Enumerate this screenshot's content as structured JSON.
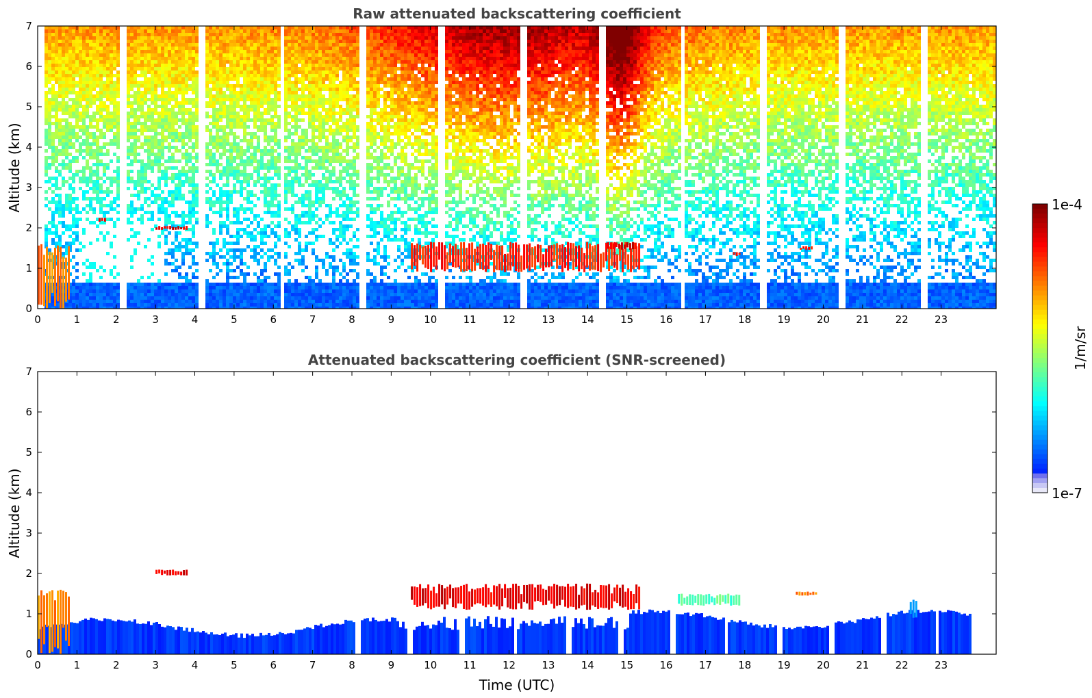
{
  "chart_data": [
    {
      "type": "heatmap",
      "title": "Raw attenuated backscattering coefficient",
      "xlabel": "",
      "ylabel": "Altitude (km)",
      "xlim": [
        0,
        24
      ],
      "ylim": [
        0,
        7
      ],
      "x_ticks": [
        "0",
        "1",
        "2",
        "3",
        "4",
        "5",
        "6",
        "7",
        "8",
        "9",
        "10",
        "11",
        "12",
        "13",
        "14",
        "15",
        "16",
        "17",
        "18",
        "19",
        "20",
        "21",
        "22",
        "23"
      ],
      "y_ticks": [
        "0",
        "1",
        "2",
        "3",
        "4",
        "5",
        "6",
        "7"
      ],
      "features": [
        {
          "x": [
            0.0,
            0.8
          ],
          "y": [
            0.0,
            1.6
          ],
          "level": 0.8
        },
        {
          "x": [
            3.0,
            3.8
          ],
          "y": [
            1.95,
            2.05
          ],
          "level": 0.95
        },
        {
          "x": [
            1.55,
            1.7
          ],
          "y": [
            2.15,
            2.25
          ],
          "level": 0.9
        },
        {
          "x": [
            9.5,
            15.3
          ],
          "y": [
            0.9,
            1.65
          ],
          "level": 0.9
        },
        {
          "x": [
            14.5,
            15.2
          ],
          "y": [
            1.45,
            1.65
          ],
          "level": 0.95
        },
        {
          "x": [
            17.7,
            17.9
          ],
          "y": [
            1.3,
            1.4
          ],
          "level": 0.9
        },
        {
          "x": [
            19.4,
            19.7
          ],
          "y": [
            1.45,
            1.55
          ],
          "level": 0.9
        }
      ]
    },
    {
      "type": "heatmap",
      "title": "Attenuated backscattering coefficient (SNR-screened)",
      "xlabel": "Time (UTC)",
      "ylabel": "Altitude (km)",
      "xlim": [
        0,
        24
      ],
      "ylim": [
        0,
        7
      ],
      "x_ticks": [
        "0",
        "1",
        "2",
        "3",
        "4",
        "5",
        "6",
        "7",
        "8",
        "9",
        "10",
        "11",
        "12",
        "13",
        "14",
        "15",
        "16",
        "17",
        "18",
        "19",
        "20",
        "21",
        "22",
        "23"
      ],
      "y_ticks": [
        "0",
        "1",
        "2",
        "3",
        "4",
        "5",
        "6",
        "7"
      ],
      "features": [
        {
          "x": [
            0.0,
            0.8
          ],
          "y": [
            0.0,
            1.6
          ],
          "level": 0.8
        },
        {
          "x": [
            3.0,
            3.8
          ],
          "y": [
            1.95,
            2.1
          ],
          "level": 0.95
        },
        {
          "x": [
            9.5,
            15.3
          ],
          "y": [
            1.1,
            1.75
          ],
          "level": 0.95
        },
        {
          "x": [
            16.3,
            17.9
          ],
          "y": [
            1.2,
            1.5
          ],
          "level": 0.5
        },
        {
          "x": [
            19.3,
            19.8
          ],
          "y": [
            1.45,
            1.55
          ],
          "level": 0.8
        },
        {
          "x": [
            22.2,
            22.4
          ],
          "y": [
            0.9,
            1.35
          ],
          "level": 0.35
        }
      ]
    }
  ],
  "colorbar": {
    "max_label": "1e-4",
    "min_label": "1e-7",
    "unit_label": "1/m/sr",
    "colormap": "jet"
  }
}
